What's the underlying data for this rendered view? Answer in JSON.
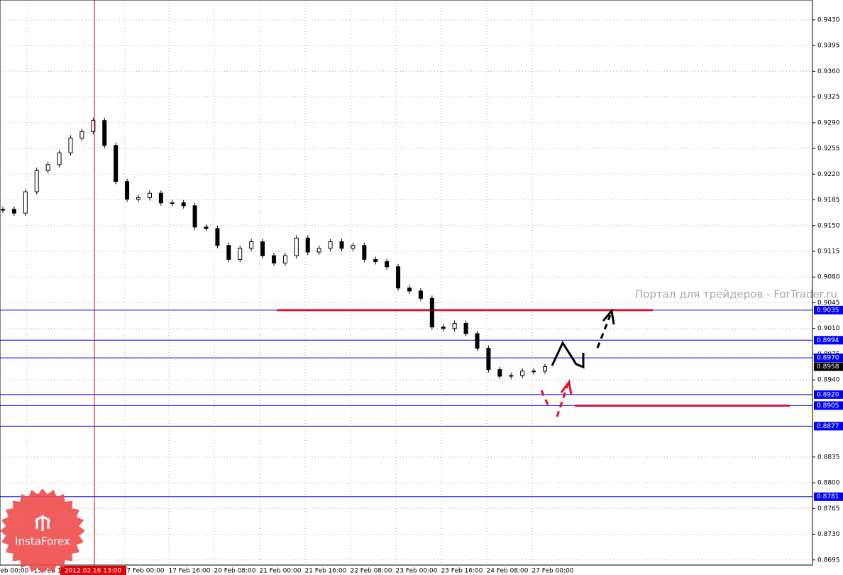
{
  "chart_data": {
    "type": "candlestick",
    "values": [
      0.9172,
      0.9167,
      0.9196,
      0.9225,
      0.9233,
      0.9249,
      0.9269,
      0.9278,
      0.9293,
      0.9259,
      0.921,
      0.9186,
      0.9188,
      0.9194,
      0.9181,
      0.9181,
      0.9177,
      0.9148,
      0.9146,
      0.9123,
      0.9104,
      0.9119,
      0.9128,
      0.9109,
      0.9099,
      0.9109,
      0.9133,
      0.9114,
      0.9119,
      0.9128,
      0.9119,
      0.9123,
      0.9104,
      0.9101,
      0.9094,
      0.9065,
      0.9061,
      0.9051,
      0.9012,
      0.901,
      0.9017,
      0.9003,
      0.8983,
      0.8954,
      0.8945,
      0.8946,
      0.8952,
      0.8952,
      0.8958
    ],
    "up_color": "#ffffff",
    "down_color": "#000000",
    "ylim": [
      0.8688,
      0.9457
    ],
    "yticks": [
      {
        "value": 0.943,
        "label": "0.9430"
      },
      {
        "value": 0.9395,
        "label": "0.9395"
      },
      {
        "value": 0.936,
        "label": "0.9360"
      },
      {
        "value": 0.9325,
        "label": "0.9325"
      },
      {
        "value": 0.929,
        "label": "0.9290"
      },
      {
        "value": 0.9255,
        "label": "0.9255"
      },
      {
        "value": 0.922,
        "label": "0.9220"
      },
      {
        "value": 0.9185,
        "label": "0.9185"
      },
      {
        "value": 0.915,
        "label": "0.9150"
      },
      {
        "value": 0.9115,
        "label": "0.9115"
      },
      {
        "value": 0.908,
        "label": "0.9080"
      },
      {
        "value": 0.9045,
        "label": "0.9045"
      },
      {
        "value": 0.901,
        "label": "0.9010"
      },
      {
        "value": 0.8975,
        "label": "0.8975"
      },
      {
        "value": 0.894,
        "label": "0.8940"
      },
      {
        "value": 0.8835,
        "label": "0.8835"
      },
      {
        "value": 0.88,
        "label": "0.8800"
      },
      {
        "value": 0.8765,
        "label": "0.8765"
      },
      {
        "value": 0.873,
        "label": "0.8730"
      },
      {
        "value": 0.8695,
        "label": "0.8695"
      }
    ],
    "grid": true,
    "x_labels": [
      "Feb 00:00",
      "15 Feb 1",
      "7 Feb 00:00",
      "17 Feb 16:00",
      "20 Feb 08:00",
      "21 Feb 00:00",
      "21 Feb 16:00",
      "22 Feb 08:00",
      "23 Feb 00:00",
      "23 Feb 16:00",
      "24 Feb 08:00",
      "27 Feb 00:00"
    ],
    "crosshair_label": "2012.02.16 13:00",
    "levels": [
      {
        "value": 0.9035,
        "label": "0.9035"
      },
      {
        "value": 0.8994,
        "label": "0.8994"
      },
      {
        "value": 0.897,
        "label": "0.8970"
      },
      {
        "value": 0.892,
        "label": "0.8920"
      },
      {
        "value": 0.8905,
        "label": "0.8905"
      },
      {
        "value": 0.8877,
        "label": "0.8877"
      },
      {
        "value": 0.8781,
        "label": "0.8781"
      }
    ],
    "level_color": "#0000ff",
    "current_price": {
      "value": 0.8958,
      "label": "0.8958"
    },
    "watermark": "Портал для трейдеров - ForTrader.ru",
    "logo": "InstaForex"
  }
}
